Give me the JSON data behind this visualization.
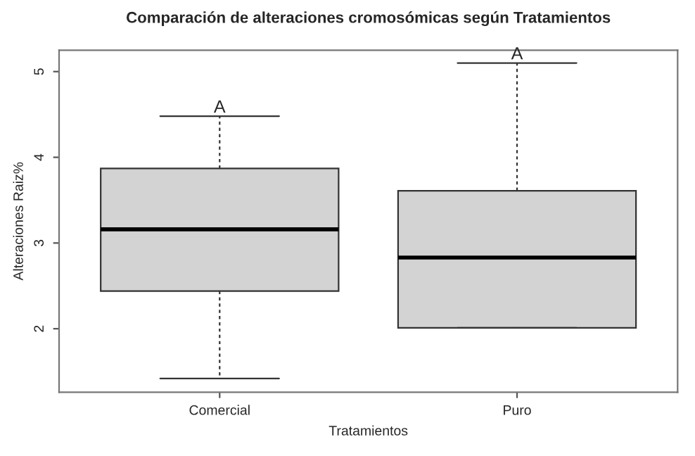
{
  "chart_data": {
    "type": "box",
    "title": "Comparación de alteraciones cromosómicas según Tratamientos",
    "xlabel": "Tratamientos",
    "ylabel": "Alteraciones Raiz%",
    "categories": [
      "Comercial",
      "Puro"
    ],
    "boxes": [
      {
        "low": 1.42,
        "q1": 2.44,
        "median": 3.16,
        "q3": 3.87,
        "high": 4.48
      },
      {
        "low": 2.01,
        "q1": 2.01,
        "median": 2.83,
        "q3": 3.61,
        "high": 5.1
      }
    ],
    "color": "#d3d3d3",
    "ylim": [
      1.26,
      5.25
    ],
    "yticks": [
      2,
      3,
      4,
      5
    ],
    "grid": false,
    "annotations": [
      {
        "text": "A",
        "x": "Comercial",
        "y": 4.48
      },
      {
        "text": "A",
        "x": "Puro",
        "y": 5.1
      }
    ]
  }
}
